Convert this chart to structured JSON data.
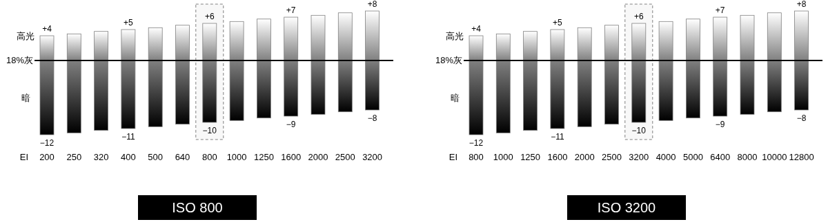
{
  "chart_data": [
    {
      "type": "bar",
      "title": "ISO 800",
      "xlabel": "EI",
      "stacked": true,
      "categories": [
        "200",
        "250",
        "320",
        "400",
        "500",
        "640",
        "800",
        "1000",
        "1250",
        "1600",
        "2000",
        "2500",
        "3200"
      ],
      "series": [
        {
          "color": "#808080",
          "values": [
            4,
            4.3,
            4.7,
            5,
            5.3,
            5.7,
            6,
            6.3,
            6.7,
            7,
            7.3,
            7.7,
            8
          ],
          "value_labels": [
            "+4",
            null,
            null,
            "+5",
            null,
            null,
            "+6",
            null,
            null,
            "+7",
            null,
            null,
            "+8"
          ]
        },
        {
          "color": "#808080",
          "values": [
            -12,
            -11.7,
            -11.3,
            -11,
            -10.7,
            -10.3,
            -10,
            -9.7,
            -9.3,
            -9,
            -8.7,
            -8.3,
            -8
          ],
          "value_labels": [
            "−12",
            null,
            null,
            "−11",
            null,
            null,
            "−10",
            null,
            null,
            "−9",
            null,
            null,
            "−8"
          ]
        }
      ],
      "ref_lines": [
        {
          "axis": "y",
          "value": 0,
          "label": "18%灰"
        }
      ],
      "bands": [
        {
          "axis": "x",
          "from": "800",
          "to": "800",
          "color": "#808080"
        }
      ],
      "annotations": [
        "高光",
        "暗"
      ]
    },
    {
      "type": "bar",
      "title": "ISO 3200",
      "xlabel": "EI",
      "stacked": true,
      "categories": [
        "800",
        "1000",
        "1250",
        "1600",
        "2000",
        "2500",
        "3200",
        "4000",
        "5000",
        "6400",
        "8000",
        "10000",
        "12800"
      ],
      "series": [
        {
          "color": "#808080",
          "values": [
            4,
            4.3,
            4.7,
            5,
            5.3,
            5.7,
            6,
            6.3,
            6.7,
            7,
            7.3,
            7.7,
            8
          ],
          "value_labels": [
            "+4",
            null,
            null,
            "+5",
            null,
            null,
            "+6",
            null,
            null,
            "+7",
            null,
            null,
            "+8"
          ]
        },
        {
          "color": "#808080",
          "values": [
            -12,
            -11.7,
            -11.3,
            -11,
            -10.7,
            -10.3,
            -10,
            -9.7,
            -9.3,
            -9,
            -8.7,
            -8.3,
            -8
          ],
          "value_labels": [
            "−12",
            null,
            null,
            "−11",
            null,
            null,
            "−10",
            null,
            null,
            "−9",
            null,
            null,
            "−8"
          ]
        }
      ],
      "ref_lines": [
        {
          "axis": "y",
          "value": 0,
          "label": "18%灰"
        }
      ],
      "bands": [
        {
          "axis": "x",
          "from": "3200",
          "to": "3200",
          "color": "#808080"
        }
      ],
      "annotations": [
        "高光",
        "暗"
      ]
    }
  ]
}
